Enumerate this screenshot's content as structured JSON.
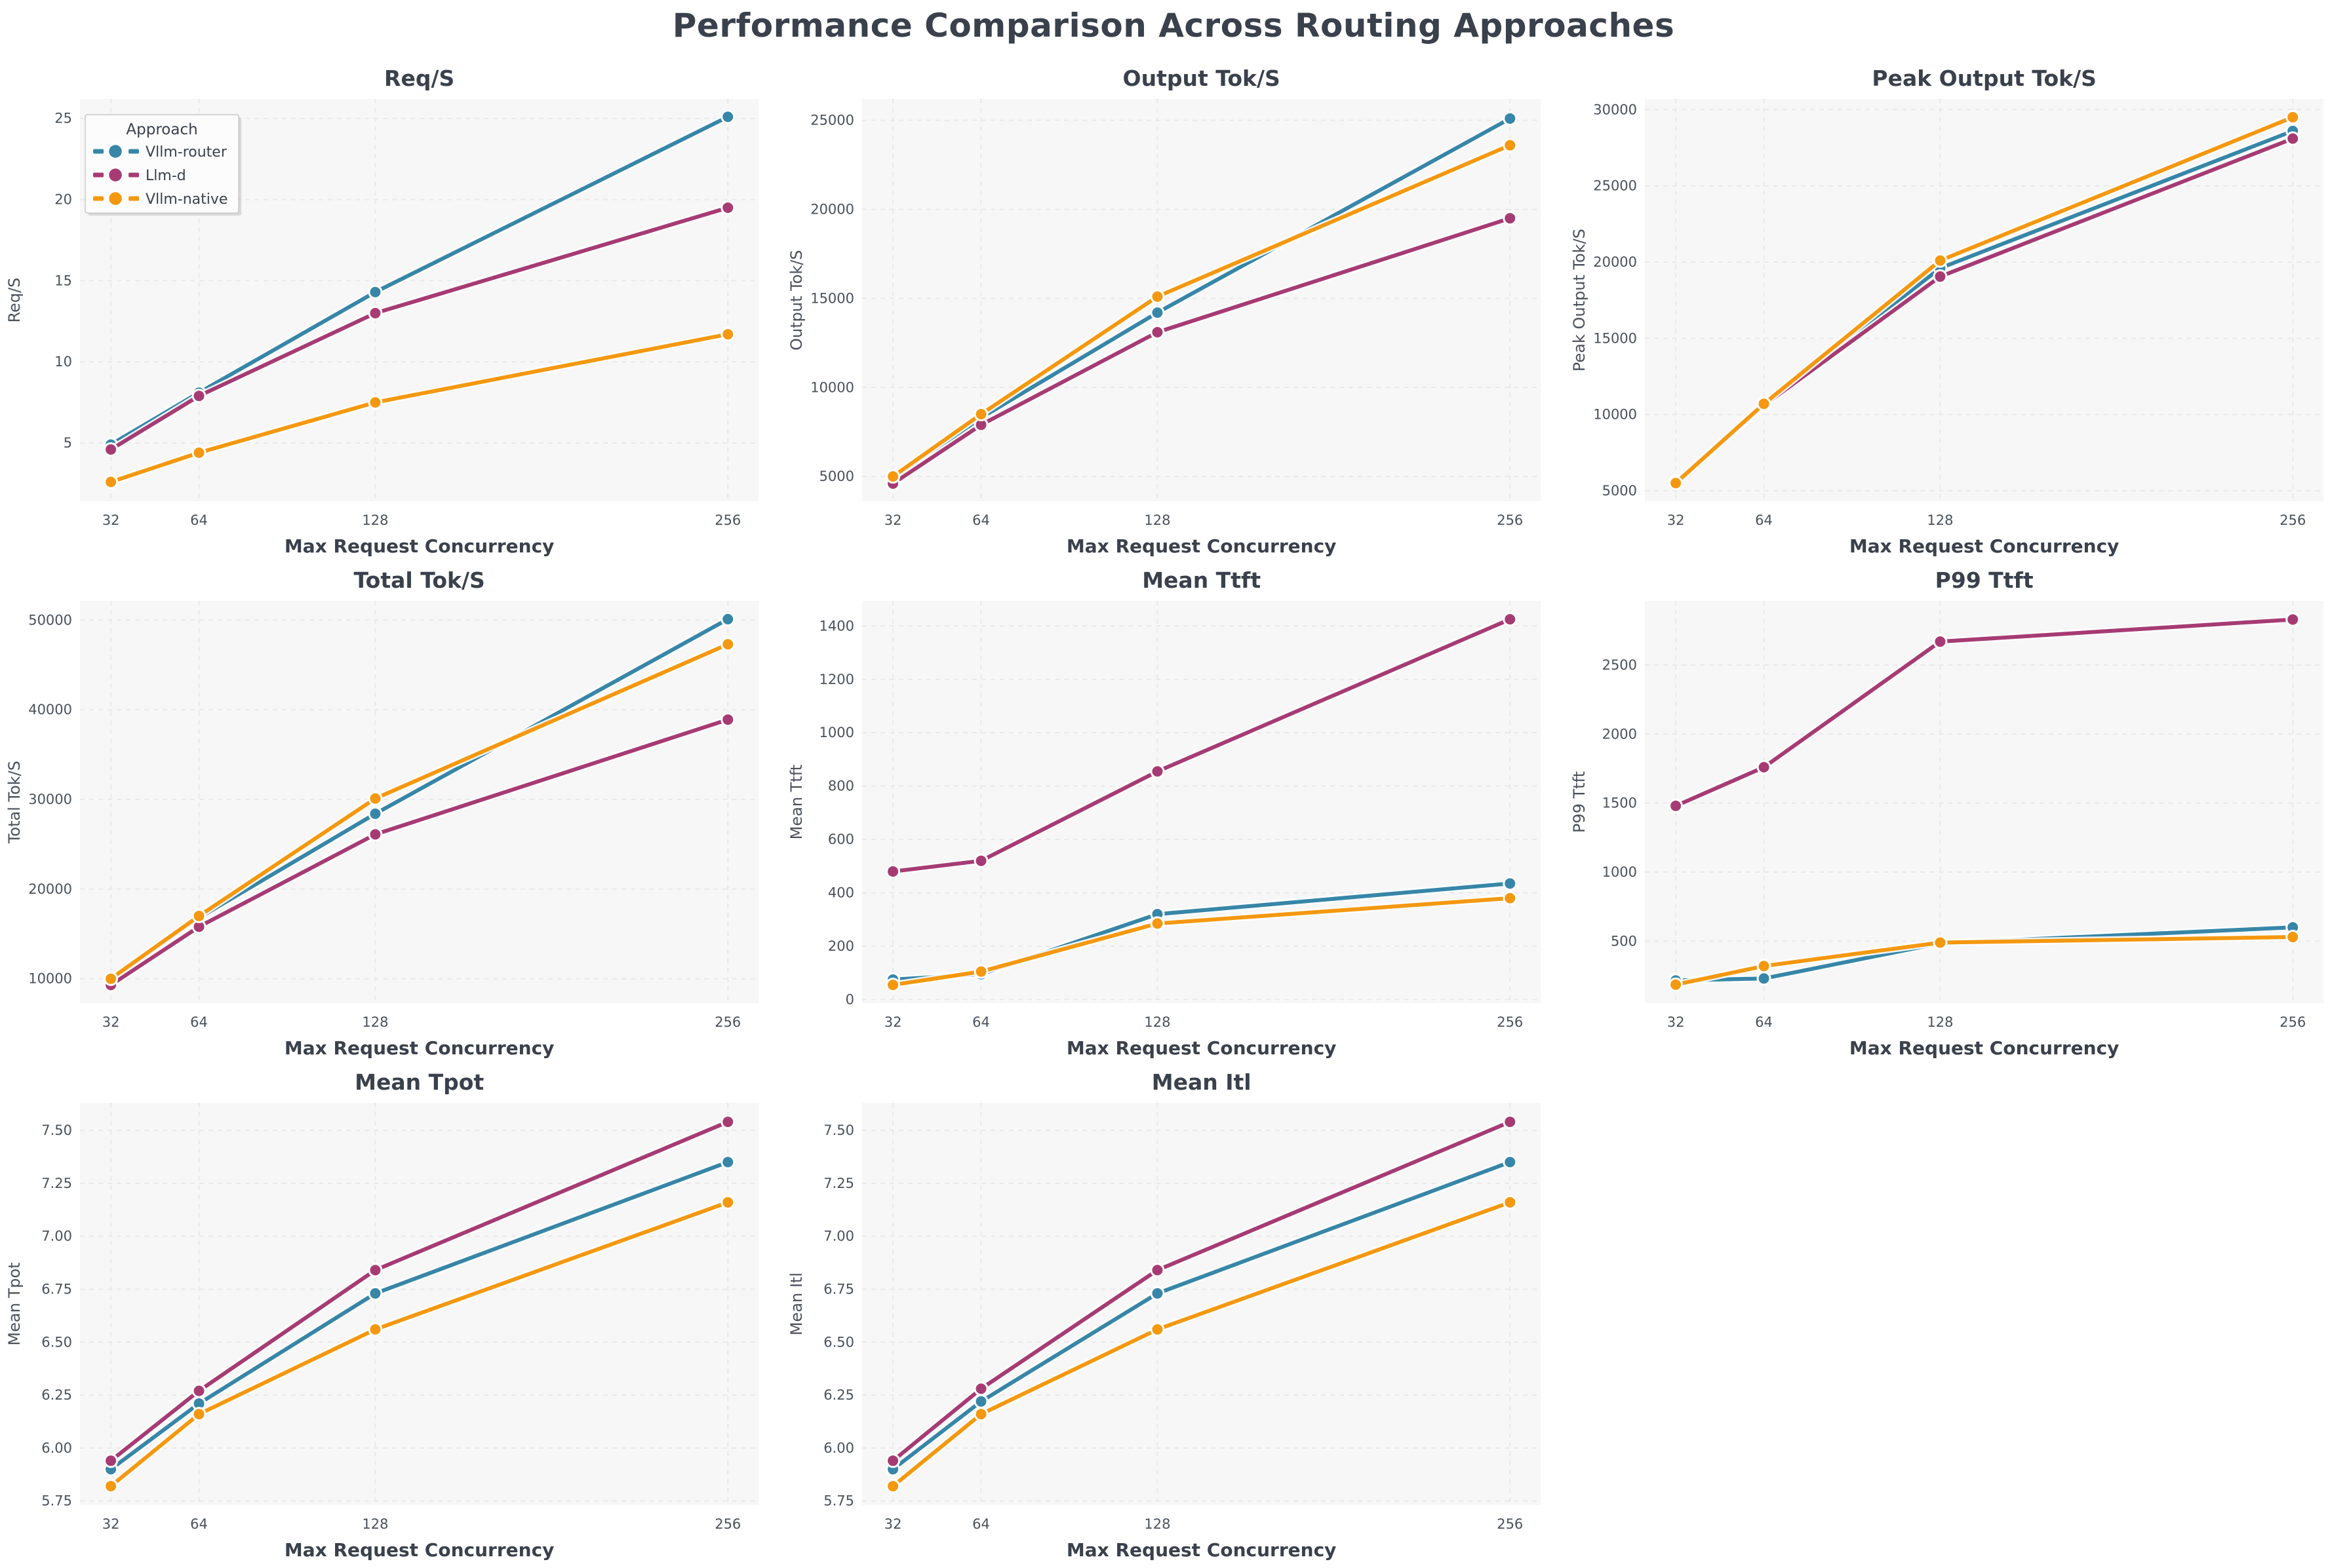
{
  "title": "Performance Comparison Across Routing Approaches",
  "palette": {
    "vllm_router": "#3786A8",
    "llm_d": "#A63B74",
    "vllm_native": "#F49810",
    "heading_text": "#3A414C",
    "tick_text": "#4A515B",
    "plot_background": "#F7F7F8",
    "grid_line": "#E9E9EC",
    "figure_background": "#FFFFFF"
  },
  "legend": {
    "title": "Approach",
    "position": "upper-left of first subplot",
    "entries": [
      {
        "label": "Vllm-router",
        "color": "#3786A8"
      },
      {
        "label": "Llm-d",
        "color": "#A63B74"
      },
      {
        "label": "Vllm-native",
        "color": "#F49810"
      }
    ]
  },
  "shared_x": {
    "label": "Max Request Concurrency",
    "ticks": [
      32,
      64,
      128,
      256
    ],
    "tick_labels": [
      "32",
      "64",
      "128",
      "256"
    ],
    "xlim": [
      20.8,
      267.2
    ]
  },
  "chart_data": [
    {
      "type": "line",
      "title": "Req/S",
      "ylabel": "Req/S",
      "xlabel": "Max Request Concurrency",
      "x": [
        32,
        64,
        128,
        256
      ],
      "ylim": [
        1.4,
        26.2
      ],
      "grid": true,
      "show_legend": true,
      "ytick_vals": [
        5,
        10,
        15,
        20,
        25
      ],
      "ytick_labels": [
        "5",
        "10",
        "15",
        "20",
        "25"
      ],
      "series": [
        {
          "name": "Vllm-router",
          "color": "#3786A8",
          "values": [
            4.9,
            8.1,
            14.3,
            25.1
          ]
        },
        {
          "name": "Llm-d",
          "color": "#A63B74",
          "values": [
            4.6,
            7.9,
            13.0,
            19.5
          ]
        },
        {
          "name": "Vllm-native",
          "color": "#F49810",
          "values": [
            2.6,
            4.4,
            7.5,
            11.7
          ]
        }
      ]
    },
    {
      "type": "line",
      "title": "Output Tok/S",
      "ylabel": "Output Tok/S",
      "xlabel": "Max Request Concurrency",
      "x": [
        32,
        64,
        128,
        256
      ],
      "ylim": [
        3600,
        26200
      ],
      "grid": true,
      "show_legend": false,
      "ytick_vals": [
        5000,
        10000,
        15000,
        20000,
        25000
      ],
      "ytick_labels": [
        "5000",
        "10000",
        "15000",
        "20000",
        "25000"
      ],
      "series": [
        {
          "name": "Vllm-router",
          "color": "#3786A8",
          "values": [
            4900,
            8300,
            14200,
            25100
          ]
        },
        {
          "name": "Llm-d",
          "color": "#A63B74",
          "values": [
            4600,
            7900,
            13100,
            19500
          ]
        },
        {
          "name": "Vllm-native",
          "color": "#F49810",
          "values": [
            5000,
            8500,
            15100,
            23600
          ]
        }
      ]
    },
    {
      "type": "line",
      "title": "Peak Output Tok/S",
      "ylabel": "Peak Output Tok/S",
      "xlabel": "Max Request Concurrency",
      "x": [
        32,
        64,
        128,
        256
      ],
      "ylim": [
        4300,
        30700
      ],
      "grid": true,
      "show_legend": false,
      "ytick_vals": [
        5000,
        10000,
        15000,
        20000,
        25000,
        30000
      ],
      "ytick_labels": [
        "5000",
        "10000",
        "15000",
        "20000",
        "25000",
        "30000"
      ],
      "series": [
        {
          "name": "Vllm-router",
          "color": "#3786A8",
          "values": [
            5600,
            10650,
            19600,
            28600
          ]
        },
        {
          "name": "Llm-d",
          "color": "#A63B74",
          "values": [
            5550,
            10600,
            19050,
            28100
          ]
        },
        {
          "name": "Vllm-native",
          "color": "#F49810",
          "values": [
            5500,
            10700,
            20100,
            29500
          ]
        }
      ]
    },
    {
      "type": "line",
      "title": "Total Tok/S",
      "ylabel": "Total Tok/S",
      "xlabel": "Max Request Concurrency",
      "x": [
        32,
        64,
        128,
        256
      ],
      "ylim": [
        7260,
        52140
      ],
      "grid": true,
      "show_legend": false,
      "ytick_vals": [
        10000,
        20000,
        30000,
        40000,
        50000
      ],
      "ytick_labels": [
        "10000",
        "20000",
        "30000",
        "40000",
        "50000"
      ],
      "series": [
        {
          "name": "Vllm-router",
          "color": "#3786A8",
          "values": [
            9900,
            16800,
            28400,
            50100
          ]
        },
        {
          "name": "Llm-d",
          "color": "#A63B74",
          "values": [
            9300,
            15800,
            26100,
            38900
          ]
        },
        {
          "name": "Vllm-native",
          "color": "#F49810",
          "values": [
            10000,
            17000,
            30100,
            47300
          ]
        }
      ]
    },
    {
      "type": "line",
      "title": "Mean Ttft",
      "ylabel": "Mean Ttft",
      "xlabel": "Max Request Concurrency",
      "x": [
        32,
        64,
        128,
        256
      ],
      "ylim": [
        -14,
        1494
      ],
      "grid": true,
      "show_legend": false,
      "ytick_vals": [
        0,
        200,
        400,
        600,
        800,
        1000,
        1200,
        1400
      ],
      "ytick_labels": [
        "0",
        "200",
        "400",
        "600",
        "800",
        "1000",
        "1200",
        "1400"
      ],
      "series": [
        {
          "name": "Vllm-router",
          "color": "#3786A8",
          "values": [
            75,
            95,
            320,
            435
          ]
        },
        {
          "name": "Llm-d",
          "color": "#A63B74",
          "values": [
            480,
            520,
            855,
            1425
          ]
        },
        {
          "name": "Vllm-native",
          "color": "#F49810",
          "values": [
            55,
            105,
            285,
            380
          ]
        }
      ]
    },
    {
      "type": "line",
      "title": "P99 Ttft",
      "ylabel": "P99 Ttft",
      "xlabel": "Max Request Concurrency",
      "x": [
        32,
        64,
        128,
        256
      ],
      "ylim": [
        50,
        2965
      ],
      "grid": true,
      "show_legend": false,
      "ytick_vals": [
        500,
        1000,
        1500,
        2000,
        2500
      ],
      "ytick_labels": [
        "500",
        "1000",
        "1500",
        "2000",
        "2500"
      ],
      "series": [
        {
          "name": "Vllm-router",
          "color": "#3786A8",
          "values": [
            215,
            230,
            485,
            600
          ]
        },
        {
          "name": "Llm-d",
          "color": "#A63B74",
          "values": [
            1480,
            1760,
            2670,
            2830
          ]
        },
        {
          "name": "Vllm-native",
          "color": "#F49810",
          "values": [
            185,
            320,
            490,
            530
          ]
        }
      ]
    },
    {
      "type": "line",
      "title": "Mean Tpot",
      "ylabel": "Mean Tpot",
      "xlabel": "Max Request Concurrency",
      "x": [
        32,
        64,
        128,
        256
      ],
      "ylim": [
        5.73,
        7.63
      ],
      "grid": true,
      "show_legend": false,
      "ytick_vals": [
        5.75,
        6.0,
        6.25,
        6.5,
        6.75,
        7.0,
        7.25,
        7.5
      ],
      "ytick_labels": [
        "5.75",
        "6.00",
        "6.25",
        "6.50",
        "6.75",
        "7.00",
        "7.25",
        "7.50"
      ],
      "series": [
        {
          "name": "Vllm-router",
          "color": "#3786A8",
          "values": [
            5.9,
            6.21,
            6.73,
            7.35
          ]
        },
        {
          "name": "Llm-d",
          "color": "#A63B74",
          "values": [
            5.94,
            6.27,
            6.84,
            7.54
          ]
        },
        {
          "name": "Vllm-native",
          "color": "#F49810",
          "values": [
            5.82,
            6.16,
            6.56,
            7.16
          ]
        }
      ]
    },
    {
      "type": "line",
      "title": "Mean Itl",
      "ylabel": "Mean Itl",
      "xlabel": "Max Request Concurrency",
      "x": [
        32,
        64,
        128,
        256
      ],
      "ylim": [
        5.73,
        7.63
      ],
      "grid": true,
      "show_legend": false,
      "ytick_vals": [
        5.75,
        6.0,
        6.25,
        6.5,
        6.75,
        7.0,
        7.25,
        7.5
      ],
      "ytick_labels": [
        "5.75",
        "6.00",
        "6.25",
        "6.50",
        "6.75",
        "7.00",
        "7.25",
        "7.50"
      ],
      "series": [
        {
          "name": "Vllm-router",
          "color": "#3786A8",
          "values": [
            5.9,
            6.22,
            6.73,
            7.35
          ]
        },
        {
          "name": "Llm-d",
          "color": "#A63B74",
          "values": [
            5.94,
            6.28,
            6.84,
            7.54
          ]
        },
        {
          "name": "Vllm-native",
          "color": "#F49810",
          "values": [
            5.82,
            6.16,
            6.56,
            7.16
          ]
        }
      ]
    }
  ]
}
